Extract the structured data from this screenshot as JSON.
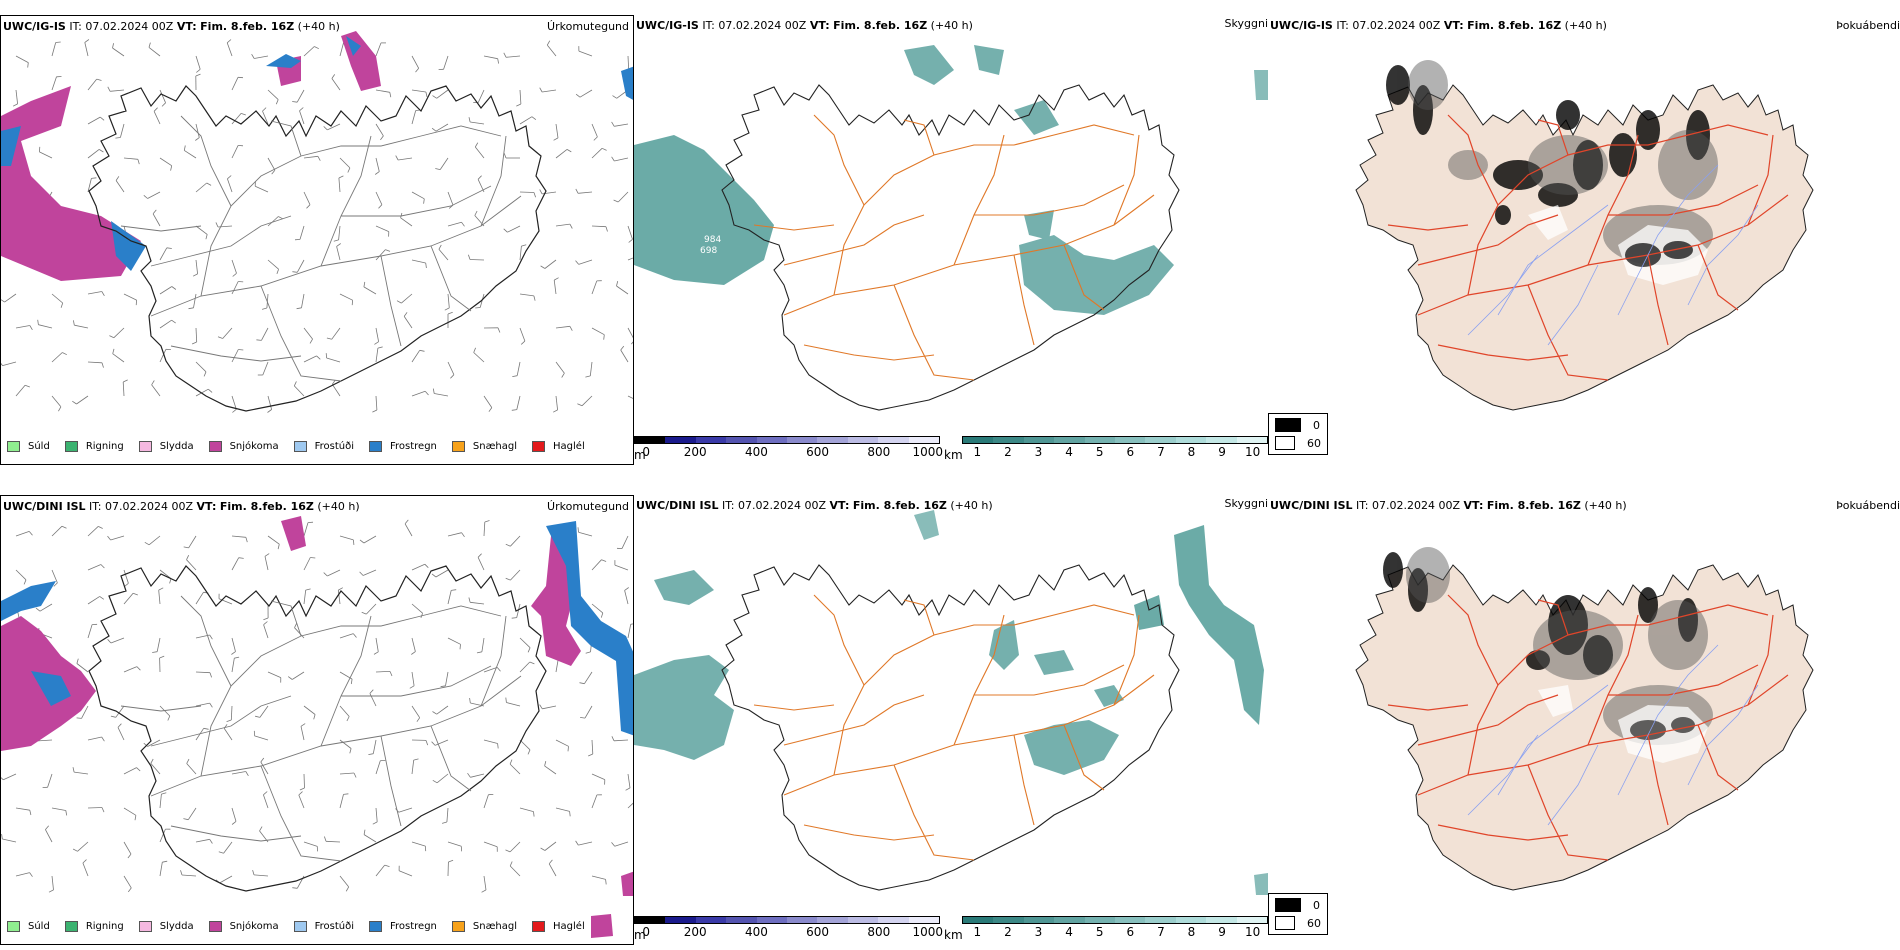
{
  "rows": [
    {
      "model": "UWC/IG-IS",
      "it_label": "IT:",
      "it_value": "07.02.2024 00Z",
      "vt_label": "VT:",
      "vt_value": "Fim. 8.feb. 16Z",
      "lead": "(+40 h)"
    },
    {
      "model": "UWC/DINI ISL",
      "it_label": "IT:",
      "it_value": "07.02.2024 00Z",
      "vt_label": "VT:",
      "vt_value": "Fim. 8.feb. 16Z",
      "lead": "(+40 h)"
    }
  ],
  "panel_types": {
    "precip": "Úrkomutegund",
    "visibility": "Skyggni",
    "fog": "Þokuábendi"
  },
  "precip_legend": [
    {
      "label": "Súld",
      "color": "#90ee90"
    },
    {
      "label": "Rigning",
      "color": "#3cb371"
    },
    {
      "label": "Slydda",
      "color": "#f5b8e0"
    },
    {
      "label": "Snjókoma",
      "color": "#c0449c"
    },
    {
      "label": "Frostúði",
      "color": "#9fc9f0"
    },
    {
      "label": "Frostregn",
      "color": "#2a7fc9"
    },
    {
      "label": "Snæhagl",
      "color": "#f7a21b"
    },
    {
      "label": "Haglél",
      "color": "#e31a1c"
    }
  ],
  "ceiling_bar": {
    "unit": "m",
    "ticks": [
      "0",
      "200",
      "400",
      "600",
      "800",
      "1000"
    ],
    "colors": [
      "#000000",
      "#1a1a8c",
      "#3a3aa8",
      "#5454b0",
      "#6e6ec0",
      "#8a8acc",
      "#a4a4d8",
      "#bcbce4",
      "#d4d4f0",
      "#ececfa"
    ]
  },
  "visibility_bar": {
    "unit": "km",
    "ticks": [
      "1",
      "2",
      "3",
      "4",
      "5",
      "6",
      "7",
      "8",
      "9",
      "10"
    ],
    "colors": [
      "#2a7a78",
      "#3c8886",
      "#4f9694",
      "#62a4a2",
      "#75b2b0",
      "#88c0be",
      "#9bcecc",
      "#aedcda",
      "#c4e8e6",
      "#e0f4f3"
    ]
  },
  "fog_legend": [
    {
      "label": "0",
      "color": "#000000"
    },
    {
      "label": "60",
      "color": "#ffffff"
    }
  ],
  "map_labels": {
    "top_vis": [
      "984",
      "698"
    ]
  },
  "colors": {
    "land_fog": "#f2e2d6",
    "roads": "#e07828",
    "roads_red": "#e0452a",
    "rivers": "#8aa0f0",
    "snow": "#c0449c",
    "freezing_rain": "#2a7fc9",
    "vis_teal": "#3a8f8a"
  }
}
